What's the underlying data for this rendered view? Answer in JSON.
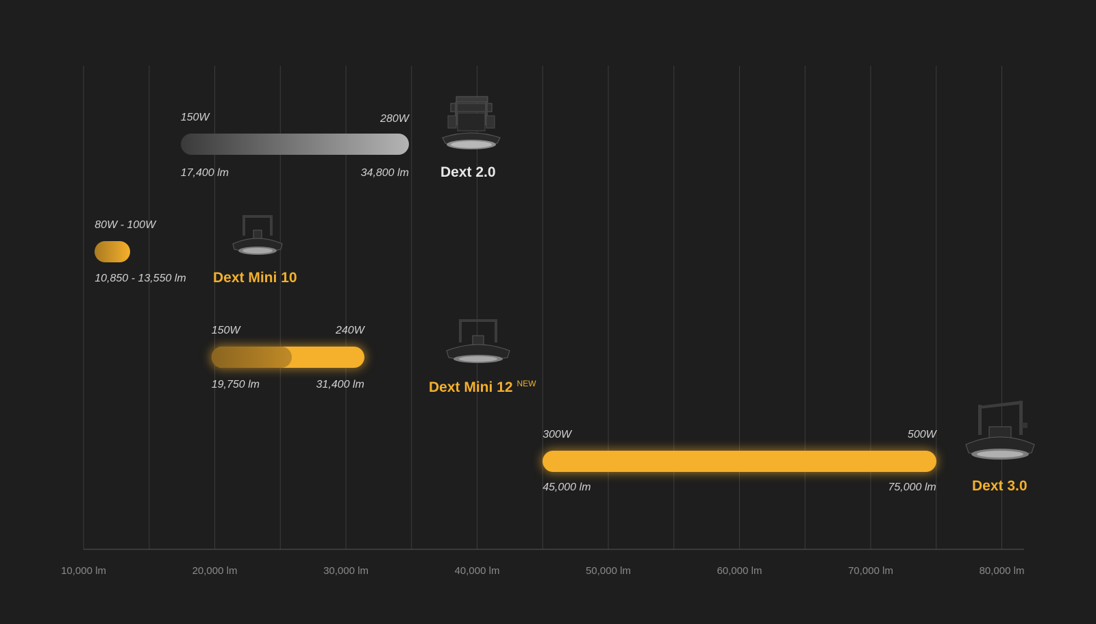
{
  "colors": {
    "background": "#1e1e1e",
    "accent": "#f5b02c",
    "grid": "#3c3c3c",
    "text_muted": "#8a8a8a",
    "text_label": "#d2d2d2",
    "product_white": "#e8e8e8"
  },
  "chart_data": {
    "type": "bar",
    "orientation": "horizontal-range",
    "xlabel": "",
    "ylabel": "",
    "xlim": [
      8500,
      82500
    ],
    "grid": true,
    "x_ticks": [
      "10,000 lm",
      "20,000 lm",
      "30,000 lm",
      "40,000 lm",
      "50,000 lm",
      "60,000 lm",
      "70,000 lm",
      "80,000 lm"
    ],
    "x_tick_values": [
      10000,
      20000,
      30000,
      40000,
      50000,
      60000,
      70000,
      80000
    ],
    "series": [
      {
        "product": "Dext 2.0",
        "product_icon": "high-bay-lamp-icon",
        "style": "gray",
        "lumen_min": 17400,
        "lumen_max": 34800,
        "watt_min_label": "150W",
        "watt_max_label": "280W",
        "lumen_min_label": "17,400 lm",
        "lumen_max_label": "34,800 lm"
      },
      {
        "product": "Dext Mini 10",
        "product_icon": "high-bay-lamp-icon",
        "style": "orange-gradient",
        "lumen_min": 10850,
        "lumen_max": 13550,
        "watt_range_label": "80W - 100W",
        "lumen_range_label": "10,850 - 13,550 lm"
      },
      {
        "product": "Dext Mini 12",
        "badge": "NEW",
        "product_icon": "high-bay-lamp-icon",
        "style": "orange-glow",
        "lumen_min": 19750,
        "lumen_max": 31400,
        "watt_min_label": "150W",
        "watt_max_label": "240W",
        "lumen_min_label": "19,750 lm",
        "lumen_max_label": "31,400 lm"
      },
      {
        "product": "Dext 3.0",
        "product_icon": "high-bay-lamp-icon",
        "style": "orange-glow",
        "lumen_min": 45000,
        "lumen_max": 75000,
        "watt_min_label": "300W",
        "watt_max_label": "500W",
        "lumen_min_label": "45,000 lm",
        "lumen_max_label": "75,000 lm"
      }
    ]
  }
}
